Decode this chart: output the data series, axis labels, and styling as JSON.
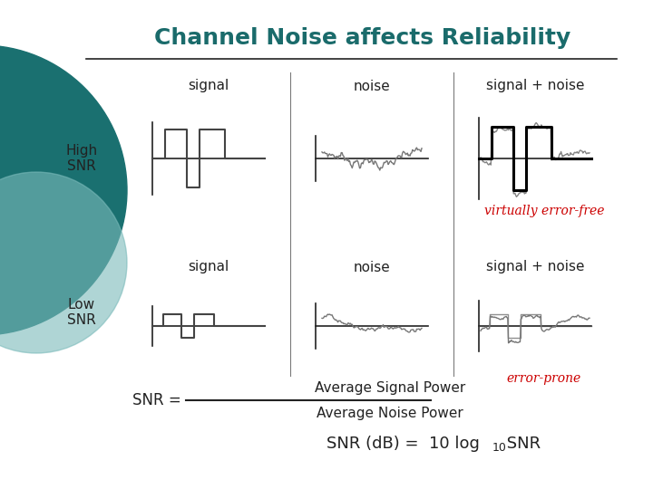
{
  "title": "Channel Noise affects Reliability",
  "title_color": "#1A6B6B",
  "bg_color": "#FFFFFF",
  "dark": "#222222",
  "signal_color": "#444444",
  "noise_color": "#777777",
  "red_color": "#CC0000",
  "row_labels": [
    "High\nSNR",
    "Low\nSNR"
  ],
  "col_labels_row1": [
    "signal",
    "noise",
    "signal + noise"
  ],
  "col_labels_row2": [
    "signal",
    "noise",
    "signal + noise"
  ],
  "virtually_error_free": "virtually error-free",
  "error_prone": "error-prone",
  "snr_top": "Average Signal Power",
  "snr_bot": "Average Noise Power",
  "snr_eq": "SNR = ",
  "snr_db_pre": "SNR (dB) =  10 log",
  "snr_db_sub": "10",
  "snr_db_post": " SNR",
  "teal_dark": "#1A7070",
  "teal_light": "#7ABABA"
}
